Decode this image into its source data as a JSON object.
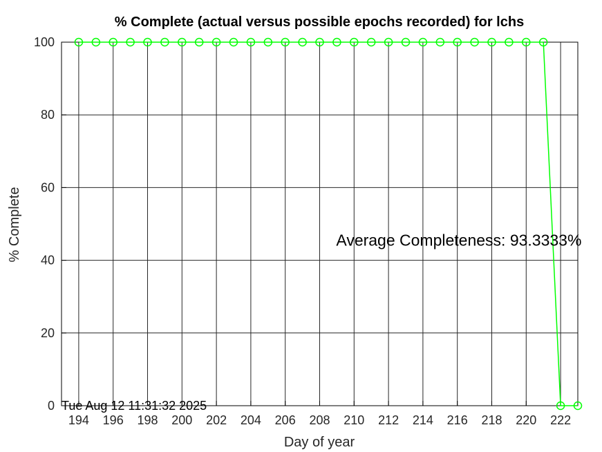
{
  "chart_data": {
    "type": "line",
    "title": "% Complete (actual versus possible epochs recorded) for lchs",
    "xlabel": "Day of year",
    "ylabel": "% Complete",
    "xlim": [
      193,
      223
    ],
    "ylim": [
      0,
      100
    ],
    "x_ticks": [
      194,
      196,
      198,
      200,
      202,
      204,
      206,
      208,
      210,
      212,
      214,
      216,
      218,
      220,
      222
    ],
    "y_ticks": [
      0,
      20,
      40,
      60,
      80,
      100
    ],
    "grid": true,
    "series": [
      {
        "color": "#00ff00",
        "marker": "circle",
        "x": [
          194,
          195,
          196,
          197,
          198,
          199,
          200,
          201,
          202,
          203,
          204,
          205,
          206,
          207,
          208,
          209,
          210,
          211,
          212,
          213,
          214,
          215,
          216,
          217,
          218,
          219,
          220,
          221,
          222,
          223
        ],
        "values": [
          100,
          100,
          100,
          100,
          100,
          100,
          100,
          100,
          100,
          100,
          100,
          100,
          100,
          100,
          100,
          100,
          100,
          100,
          100,
          100,
          100,
          100,
          100,
          100,
          100,
          100,
          100,
          100,
          0,
          0
        ]
      }
    ],
    "annotations": [
      {
        "text": "Average Completeness: 93.3333%",
        "x": 209,
        "y": 44
      }
    ],
    "timestamp": "Tue Aug 12 11:31:32 2025"
  }
}
